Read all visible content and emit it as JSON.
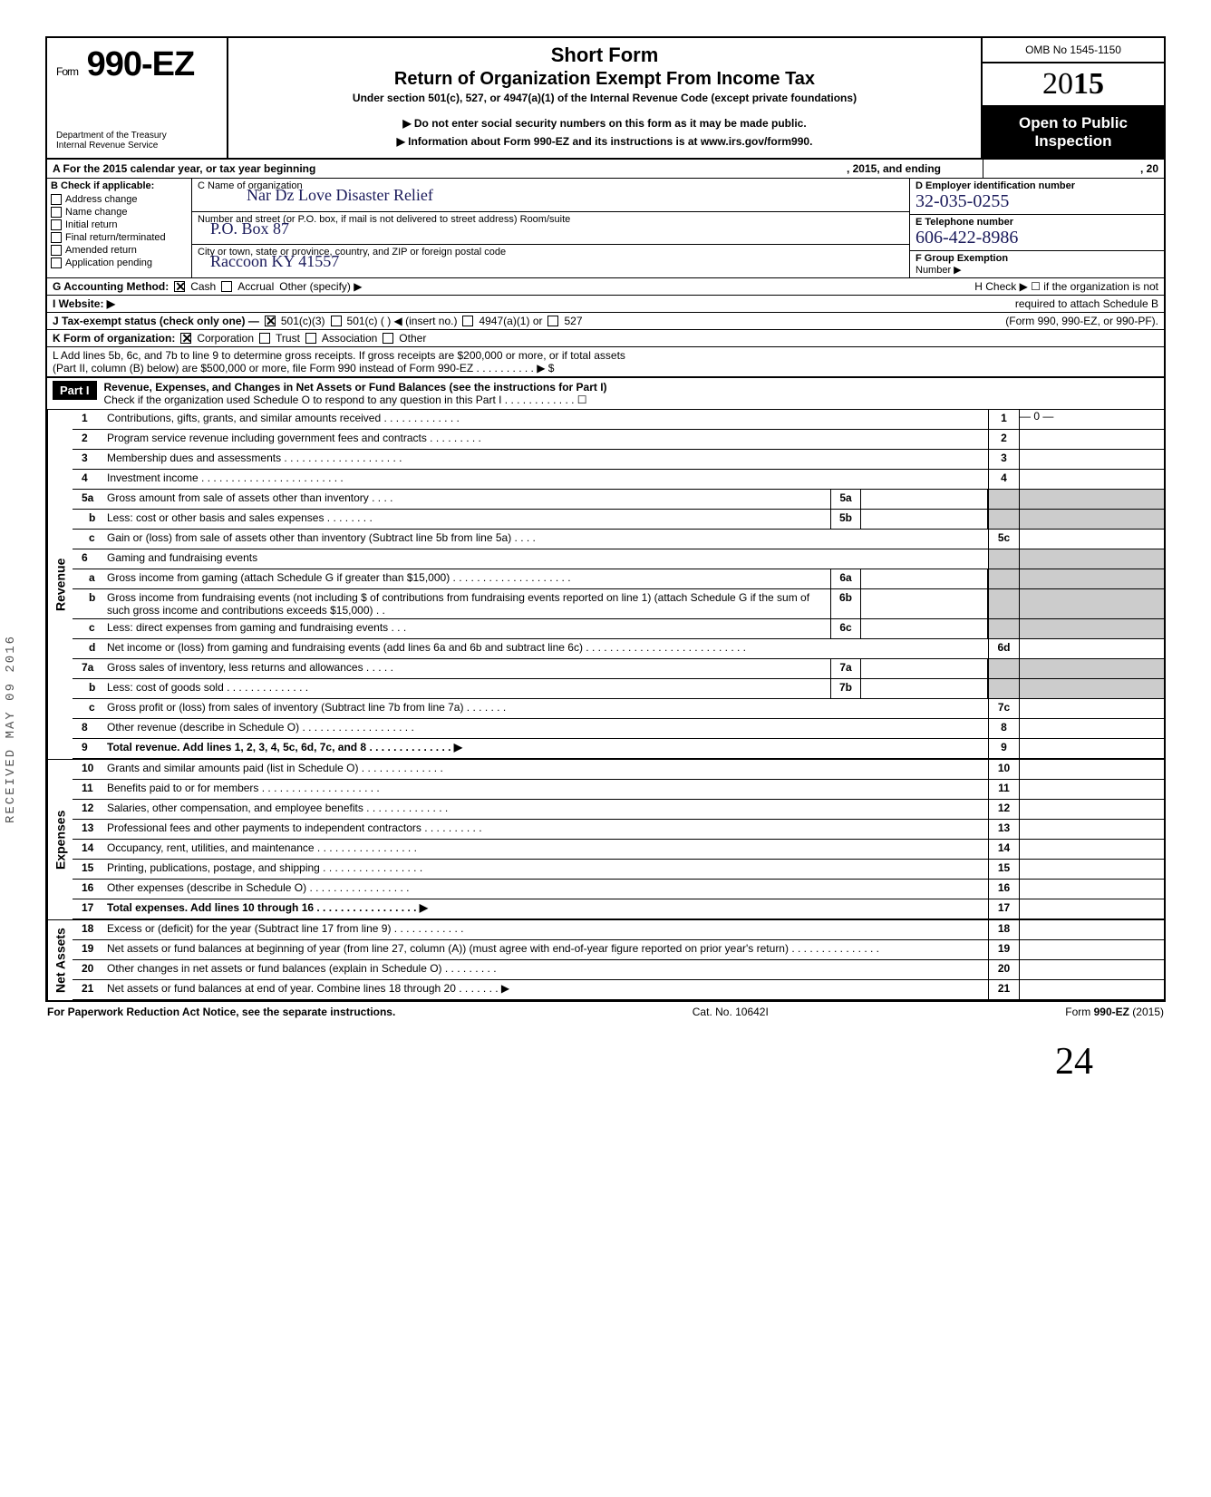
{
  "meta": {
    "omb": "OMB No 1545-1150",
    "year_prefix": "20",
    "year_bold": "15",
    "form_label": "Form",
    "form_no": "990-EZ",
    "dept1": "Department of the Treasury",
    "dept2": "Internal Revenue Service",
    "title1": "Short Form",
    "title2": "Return of Organization Exempt From Income Tax",
    "title3": "Under section 501(c), 527, or 4947(a)(1) of the Internal Revenue Code (except private foundations)",
    "title4": "▶ Do not enter social security numbers on this form as it may be made public.",
    "title5": "▶ Information about Form 990-EZ and its instructions is at www.irs.gov/form990.",
    "open1": "Open to Public",
    "open2": "Inspection"
  },
  "rowA": {
    "left": "A  For the 2015 calendar year, or tax year beginning",
    "mid": ", 2015, and ending",
    "right": ", 20"
  },
  "colB": {
    "hdr": "B  Check if applicable:",
    "items": [
      "Address change",
      "Name change",
      "Initial return",
      "Final return/terminated",
      "Amended return",
      "Application pending"
    ]
  },
  "colC": {
    "l1": "C Name of organization",
    "l1v": "Nar  Dz  Love Disaster Relief",
    "l2": "Number and street (or P.O. box, if mail is not delivered to street address)          Room/suite",
    "l2v": "P.O. Box 87",
    "l3": "City or town, state or province, country, and ZIP or foreign postal code",
    "l3v": "Raccoon        KY 41557"
  },
  "colDEF": {
    "d": "D Employer identification number",
    "dv": "32-035-0255",
    "e": "E Telephone number",
    "ev": "606-422-8986",
    "f": "F Group Exemption",
    "f2": "Number ▶"
  },
  "rowG": {
    "g": "G  Accounting Method:",
    "cash": "Cash",
    "accrual": "Accrual",
    "other": "Other (specify) ▶",
    "h": "H  Check ▶ ☐ if the organization is not"
  },
  "rowI": {
    "i": "I   Website: ▶",
    "h2": "required to attach Schedule B"
  },
  "rowJ": {
    "j": "J  Tax-exempt status (check only one) —",
    "a": "501(c)(3)",
    "b": "501(c) (          ) ◀ (insert no.)",
    "c": "4947(a)(1) or",
    "d": "527",
    "r": "(Form 990, 990-EZ, or 990-PF)."
  },
  "rowK": {
    "k": "K  Form of organization:",
    "a": "Corporation",
    "b": "Trust",
    "c": "Association",
    "d": "Other"
  },
  "rowL": {
    "l1": "L  Add lines 5b, 6c, and 7b to line 9 to determine gross receipts. If gross receipts are $200,000 or more, or if total assets",
    "l2": "(Part II, column (B) below) are $500,000 or more, file Form 990 instead of Form 990-EZ .    .    .    .    .    .    .    .    .    .    ▶   $"
  },
  "part1": {
    "label": "Part I",
    "title": "Revenue, Expenses, and Changes in Net Assets or Fund Balances (see the instructions for Part I)",
    "sub": "Check if the organization used Schedule O to respond to any question in this Part I .   .   .   .   .   .   .   .   .   .   .   .   ☐"
  },
  "sections": {
    "revenue": "Revenue",
    "expenses": "Expenses",
    "netassets": "Net Assets"
  },
  "lines": {
    "1": {
      "n": "1",
      "d": "Contributions, gifts, grants, and similar amounts received .    .    .    .    .    .    .    .    .    .    .    .    .",
      "rn": "1",
      "rv": "— 0 —"
    },
    "2": {
      "n": "2",
      "d": "Program service revenue including government fees and contracts    .    .    .    .    .    .    .    .    .",
      "rn": "2"
    },
    "3": {
      "n": "3",
      "d": "Membership dues and assessments .    .    .    .    .    .    .    .    .    .    .    .    .    .    .    .    .    .    .    .",
      "rn": "3"
    },
    "4": {
      "n": "4",
      "d": "Investment income    .    .    .    .    .    .    .    .    .    .    .    .    .    .    .    .    .    .    .    .    .    .    .    .",
      "rn": "4"
    },
    "5a": {
      "n": "5a",
      "d": "Gross amount from sale of assets other than inventory    .    .    .    .",
      "mn": "5a"
    },
    "5b": {
      "n": "b",
      "d": "Less: cost or other basis and sales expenses .    .    .    .    .    .    .    .",
      "mn": "5b"
    },
    "5c": {
      "n": "c",
      "d": "Gain or (loss) from sale of assets other than inventory (Subtract line 5b from line 5a) .    .    .    .",
      "rn": "5c"
    },
    "6": {
      "n": "6",
      "d": "Gaming and fundraising events"
    },
    "6a": {
      "n": "a",
      "d": "Gross income from gaming (attach Schedule G if greater than $15,000) .    .    .    .    .    .    .    .    .    .    .    .    .    .    .    .    .    .    .    .",
      "mn": "6a"
    },
    "6b": {
      "n": "b",
      "d": "Gross income from fundraising events (not including  $                    of contributions from fundraising events reported on line 1) (attach Schedule G if the sum of such gross income and contributions exceeds $15,000) .    .",
      "mn": "6b"
    },
    "6c": {
      "n": "c",
      "d": "Less: direct expenses from gaming and fundraising events    .    .    .",
      "mn": "6c"
    },
    "6d": {
      "n": "d",
      "d": "Net income or (loss) from gaming and fundraising events (add lines 6a and 6b and subtract line 6c)    .    .    .    .    .    .    .    .    .    .    .    .    .    .    .    .    .    .    .    .    .    .    .    .    .    .    .",
      "rn": "6d"
    },
    "7a": {
      "n": "7a",
      "d": "Gross sales of inventory, less returns and allowances    .    .    .    .    .",
      "mn": "7a"
    },
    "7b": {
      "n": "b",
      "d": "Less: cost of goods sold    .    .    .    .    .    .    .    .    .    .    .    .    .    .",
      "mn": "7b"
    },
    "7c": {
      "n": "c",
      "d": "Gross profit or (loss) from sales of inventory (Subtract line 7b from line 7a)    .    .    .    .    .    .    .",
      "rn": "7c"
    },
    "8": {
      "n": "8",
      "d": "Other revenue (describe in Schedule O) .    .    .    .    .    .    .    .    .    .    .    .    .    .    .    .    .    .    .",
      "rn": "8"
    },
    "9": {
      "n": "9",
      "d": "Total revenue. Add lines 1, 2, 3, 4, 5c, 6d, 7c, and 8    .    .    .    .    .    .    .    .    .    .    .    .    .    . ▶",
      "rn": "9",
      "bold": true
    },
    "10": {
      "n": "10",
      "d": "Grants and similar amounts paid (list in Schedule O)    .    .    .    .    .    .    .    .    .    .    .    .    .    .",
      "rn": "10"
    },
    "11": {
      "n": "11",
      "d": "Benefits paid to or for members    .    .    .    .    .    .    .    .    .    .    .    .    .    .    .    .    .    .    .    .",
      "rn": "11"
    },
    "12": {
      "n": "12",
      "d": "Salaries, other compensation, and employee benefits .    .    .    .    .    .    .    .    .    .    .    .    .    .",
      "rn": "12"
    },
    "13": {
      "n": "13",
      "d": "Professional fees and other payments to independent contractors .    .    .    .    .    .    .    .    .    .",
      "rn": "13"
    },
    "14": {
      "n": "14",
      "d": "Occupancy, rent, utilities, and maintenance    .    .    .    .    .    .    .    .    .    .    .    .    .    .    .    .    .",
      "rn": "14"
    },
    "15": {
      "n": "15",
      "d": "Printing, publications, postage, and shipping .    .    .    .    .    .    .    .    .    .    .    .    .    .    .    .    .",
      "rn": "15"
    },
    "16": {
      "n": "16",
      "d": "Other expenses (describe in Schedule O)    .    .    .    .    .    .    .    .    .    .    .    .    .    .    .    .    .",
      "rn": "16"
    },
    "17": {
      "n": "17",
      "d": "Total expenses. Add lines 10 through 16    .    .    .    .    .    .    .    .    .    .    .    .    .    .    .    .    . ▶",
      "rn": "17",
      "bold": true
    },
    "18": {
      "n": "18",
      "d": "Excess or (deficit) for the year (Subtract line 17 from line 9)    .    .    .    .    .    .    .    .    .    .    .    .",
      "rn": "18"
    },
    "19": {
      "n": "19",
      "d": "Net assets or fund balances at beginning of year (from line 27, column (A)) (must agree with end-of-year figure reported on prior year's return)    .    .    .    .    .    .    .    .    .    .    .    .    .    .    .",
      "rn": "19"
    },
    "20": {
      "n": "20",
      "d": "Other changes in net assets or fund balances (explain in Schedule O) .    .    .    .    .    .    .    .    .",
      "rn": "20"
    },
    "21": {
      "n": "21",
      "d": "Net assets or fund balances at end of year. Combine lines 18 through 20    .    .    .    .    .    .    . ▶",
      "rn": "21"
    }
  },
  "footer": {
    "l": "For Paperwork Reduction Act Notice, see the separate instructions.",
    "m": "Cat. No. 10642I",
    "r": "Form 990-EZ (2015)"
  },
  "page": "24",
  "stamp": "RECEIVED  MAY 09 2016",
  "colors": {
    "ink": "#000000",
    "hand": "#1a1a5a",
    "shade": "#cccccc"
  }
}
